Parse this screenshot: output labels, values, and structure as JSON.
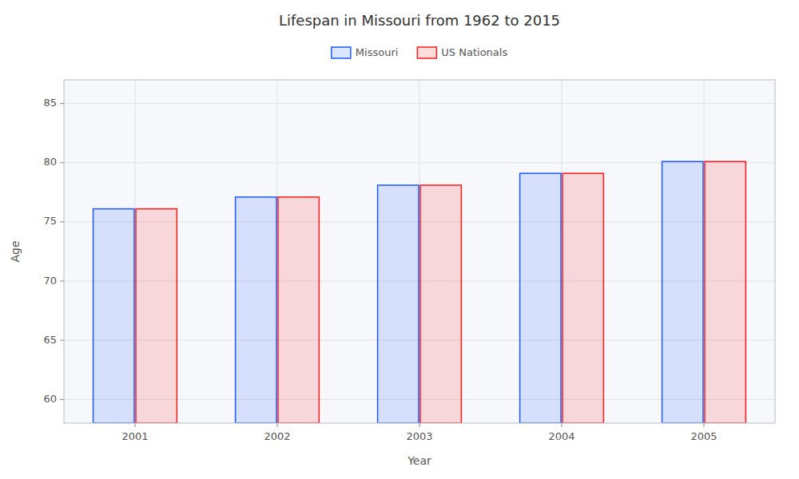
{
  "chart_data": {
    "type": "bar",
    "title": "Lifespan in Missouri from 1962 to 2015",
    "xlabel": "Year",
    "ylabel": "Age",
    "categories": [
      "2001",
      "2002",
      "2003",
      "2004",
      "2005"
    ],
    "series": [
      {
        "name": "Missouri",
        "color": "#1a5aff",
        "values": [
          76.1,
          77.1,
          78.1,
          79.1,
          80.1
        ]
      },
      {
        "name": "US Nationals",
        "color": "#ff1a1a",
        "values": [
          76.1,
          77.1,
          78.1,
          79.1,
          80.1
        ]
      }
    ],
    "ylim": [
      58,
      87
    ],
    "yticks": [
      60,
      65,
      70,
      75,
      80,
      85
    ],
    "grid": true,
    "legend": "top"
  }
}
